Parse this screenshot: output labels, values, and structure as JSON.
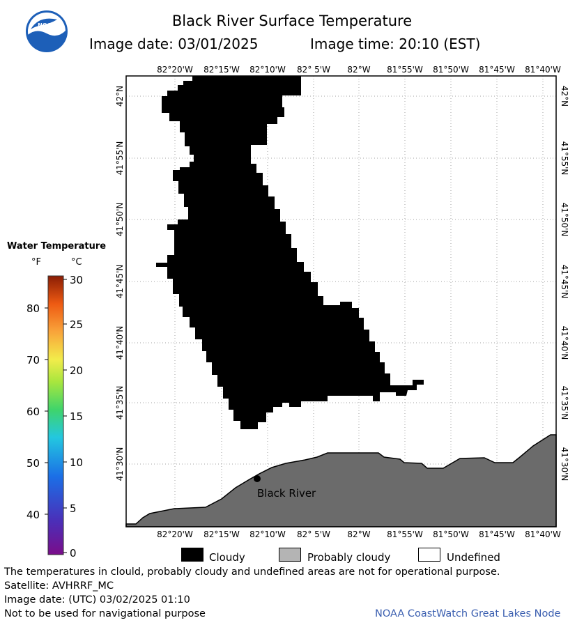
{
  "header": {
    "title": "Black River Surface Temperature",
    "image_date": "Image date: 03/01/2025",
    "image_time": "Image time: 20:10 (EST)",
    "logo_text": "NOAA"
  },
  "map": {
    "top_lon_labels": [
      "82°20'W",
      "82°15'W",
      "82°10'W",
      "82° 5'W",
      "82°W",
      "81°55'W",
      "81°50'W",
      "81°45'W",
      "81°40'W"
    ],
    "bottom_lon_labels": [
      "82°20'W",
      "82°15'W",
      "82°10'W",
      "82° 5'W",
      "82°W",
      "81°55'W",
      "81°50'W",
      "81°45'W",
      "81°40'W"
    ],
    "lat_labels": [
      "42°N",
      "41°55'N",
      "41°50'N",
      "41°45'N",
      "41°40'N",
      "41°35'N",
      "41°30'N"
    ],
    "location_label": "Black River",
    "colors": {
      "cloud": "#000000",
      "land": "#6b6b6b",
      "undefined": "#ffffff",
      "grid": "#a0a0a0"
    }
  },
  "color_scale": {
    "title": "Water Temperature",
    "unit_f": "°F",
    "unit_c": "°C",
    "f_ticks": [
      "80",
      "70",
      "60",
      "50",
      "40"
    ],
    "c_ticks": [
      "30",
      "25",
      "20",
      "15",
      "10",
      "5",
      "0"
    ]
  },
  "key": {
    "cloudy": "Cloudy",
    "probably_cloudy": "Probably cloudy",
    "undefined": "Undefined",
    "colors": {
      "cloudy": "#000000",
      "probably_cloudy": "#b4b4b4",
      "undefined": "#ffffff"
    }
  },
  "footer": {
    "disclaimer": "The temperatures in clould, probably cloudy and undefined areas are not for operational purpose.",
    "satellite": "Satellite: AVHRRF_MC",
    "utc_date": "Image date: (UTC) 03/02/2025  01:10",
    "navigation": "Not to be used for navigational purpose",
    "credit": "NOAA CoastWatch Great Lakes Node"
  }
}
